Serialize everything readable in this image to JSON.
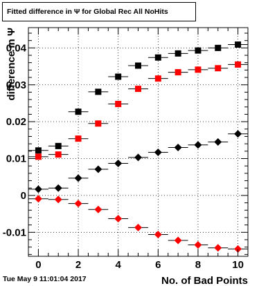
{
  "chart_data": {
    "type": "scatter",
    "title": "Fitted difference in  Ψ  for Global Rec All NoHits",
    "xlabel": "No. of Bad Points",
    "ylabel": "difference in Ψ",
    "xlim": [
      -0.5,
      10.5
    ],
    "ylim": [
      -0.0165,
      0.0455
    ],
    "x_ticks": [
      0,
      2,
      4,
      6,
      8,
      10
    ],
    "y_ticks": [
      -0.01,
      0,
      0.01,
      0.02,
      0.03,
      0.04
    ],
    "y_tick_labels": [
      "-0.01",
      "0",
      "0.01",
      "0.02",
      "0.03",
      "0.04"
    ],
    "grid": true,
    "x": [
      0,
      1,
      2,
      3,
      4,
      5,
      6,
      7,
      8,
      9,
      10
    ],
    "series": [
      {
        "marker": "square",
        "color": "#000000",
        "values": [
          0.0122,
          0.0134,
          0.0227,
          0.0281,
          0.0322,
          0.0352,
          0.0374,
          0.0385,
          0.0393,
          0.04,
          0.0409
        ]
      },
      {
        "marker": "square",
        "color": "#ff0000",
        "values": [
          0.0105,
          0.0111,
          0.0154,
          0.0195,
          0.0248,
          0.0289,
          0.0317,
          0.0334,
          0.0341,
          0.0345,
          0.0355
        ]
      },
      {
        "marker": "diamond",
        "color": "#000000",
        "values": [
          0.0017,
          0.002,
          0.0047,
          0.0071,
          0.0087,
          0.0103,
          0.0117,
          0.013,
          0.0137,
          0.0145,
          0.0167
        ]
      },
      {
        "marker": "diamond",
        "color": "#ff0000",
        "values": [
          -0.0009,
          -0.0011,
          -0.0022,
          -0.0038,
          -0.0063,
          -0.0087,
          -0.0106,
          -0.0122,
          -0.0134,
          -0.0142,
          -0.0145
        ]
      }
    ]
  },
  "footer": {
    "timestamp": "Tue May  9 11:01:04 2017"
  }
}
